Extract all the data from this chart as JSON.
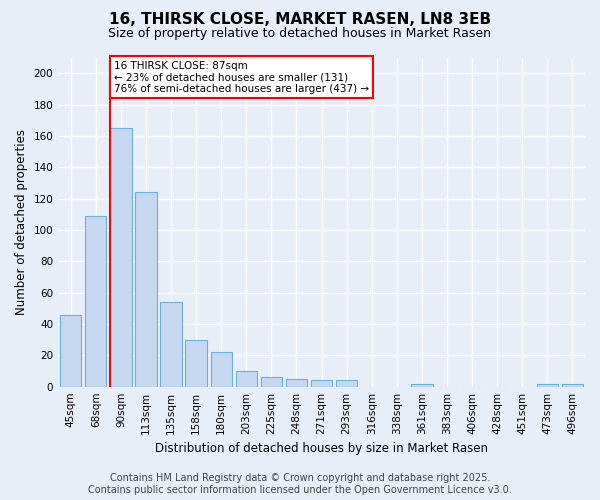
{
  "title": "16, THIRSK CLOSE, MARKET RASEN, LN8 3EB",
  "subtitle": "Size of property relative to detached houses in Market Rasen",
  "xlabel": "Distribution of detached houses by size in Market Rasen",
  "ylabel": "Number of detached properties",
  "categories": [
    "45sqm",
    "68sqm",
    "90sqm",
    "113sqm",
    "135sqm",
    "158sqm",
    "180sqm",
    "203sqm",
    "225sqm",
    "248sqm",
    "271sqm",
    "293sqm",
    "316sqm",
    "338sqm",
    "361sqm",
    "383sqm",
    "406sqm",
    "428sqm",
    "451sqm",
    "473sqm",
    "496sqm"
  ],
  "values": [
    46,
    109,
    165,
    124,
    54,
    30,
    22,
    10,
    6,
    5,
    4,
    4,
    0,
    0,
    2,
    0,
    0,
    0,
    0,
    2,
    2
  ],
  "bar_color": "#c5d8f0",
  "bar_edge_color": "#6baed6",
  "annotation_label": "16 THIRSK CLOSE: 87sqm",
  "annotation_line1": "← 23% of detached houses are smaller (131)",
  "annotation_line2": "76% of semi-detached houses are larger (437) →",
  "annotation_box_color": "white",
  "annotation_box_edge": "red",
  "vline_color": "red",
  "ylim": [
    0,
    210
  ],
  "yticks": [
    0,
    20,
    40,
    60,
    80,
    100,
    120,
    140,
    160,
    180,
    200
  ],
  "background_color": "#e8eef8",
  "grid_color": "#ffffff",
  "footer_line1": "Contains HM Land Registry data © Crown copyright and database right 2025.",
  "footer_line2": "Contains public sector information licensed under the Open Government Licence v3.0.",
  "title_fontsize": 11,
  "subtitle_fontsize": 9,
  "axis_label_fontsize": 8.5,
  "tick_fontsize": 7.5,
  "annotation_fontsize": 7.5,
  "footer_fontsize": 7
}
